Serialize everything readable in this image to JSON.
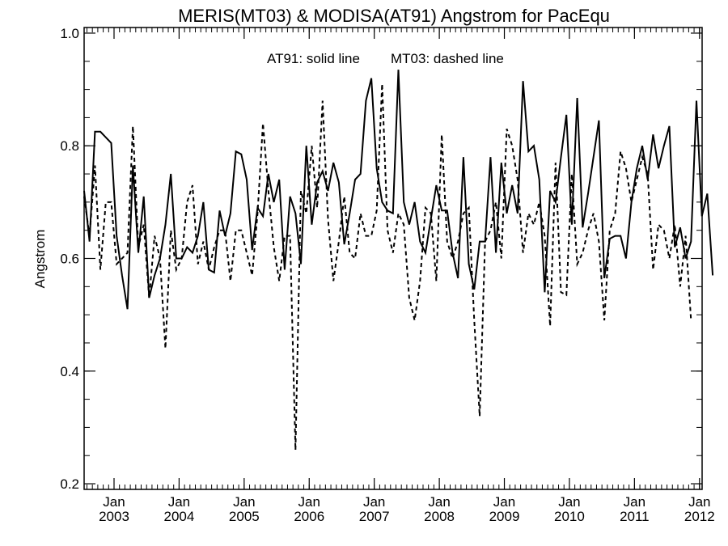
{
  "chart_data": {
    "type": "line",
    "title": "MERIS(MT03) & MODISA(AT91)  Angstrom for PacEqu",
    "ylabel": "Angstrom",
    "xlabel": "",
    "annotation_solid": "AT91: solid line",
    "annotation_dashed": "MT03: dashed line",
    "ylim": [
      0.19,
      1.01
    ],
    "xlim": [
      2002.54,
      2012.04
    ],
    "yticks": [
      0.2,
      0.4,
      0.6,
      0.8,
      1.0
    ],
    "ytick_labels": [
      "0.2",
      "0.4",
      "0.6",
      "0.8",
      "1.0"
    ],
    "xticks": [
      {
        "month": "Jan",
        "year": "2003",
        "x": 2003.0
      },
      {
        "month": "Jan",
        "year": "2004",
        "x": 2004.0
      },
      {
        "month": "Jan",
        "year": "2005",
        "x": 2005.0
      },
      {
        "month": "Jan",
        "year": "2006",
        "x": 2006.0
      },
      {
        "month": "Jan",
        "year": "2007",
        "x": 2007.0
      },
      {
        "month": "Jan",
        "year": "2008",
        "x": 2008.0
      },
      {
        "month": "Jan",
        "year": "2009",
        "x": 2009.0
      },
      {
        "month": "Jan",
        "year": "2010",
        "x": 2010.0
      },
      {
        "month": "Jan",
        "year": "2011",
        "x": 2011.0
      },
      {
        "month": "Jan",
        "year": "2012",
        "x": 2012.0
      }
    ],
    "x_start": 2002.54,
    "x_step": 0.0833,
    "series": [
      {
        "name": "AT91",
        "style": "solid",
        "color": "#000000",
        "values": [
          0.72,
          0.63,
          0.825,
          0.825,
          0.815,
          0.805,
          0.64,
          0.57,
          0.51,
          0.765,
          0.61,
          0.71,
          0.53,
          0.57,
          0.6,
          0.66,
          0.75,
          0.6,
          0.6,
          0.62,
          0.61,
          0.64,
          0.7,
          0.58,
          0.575,
          0.685,
          0.64,
          0.68,
          0.79,
          0.785,
          0.74,
          0.615,
          0.69,
          0.675,
          0.75,
          0.7,
          0.74,
          0.58,
          0.71,
          0.68,
          0.59,
          0.8,
          0.66,
          0.735,
          0.755,
          0.72,
          0.77,
          0.735,
          0.625,
          0.68,
          0.74,
          0.75,
          0.88,
          0.92,
          0.76,
          0.7,
          0.685,
          0.68,
          0.935,
          0.7,
          0.66,
          0.7,
          0.63,
          0.61,
          0.67,
          0.73,
          0.685,
          0.685,
          0.61,
          0.565,
          0.78,
          0.59,
          0.545,
          0.63,
          0.63,
          0.78,
          0.61,
          0.77,
          0.68,
          0.73,
          0.68,
          0.915,
          0.79,
          0.8,
          0.74,
          0.54,
          0.72,
          0.7,
          0.78,
          0.855,
          0.66,
          0.885,
          0.655,
          0.715,
          0.78,
          0.845,
          0.565,
          0.635,
          0.64,
          0.64,
          0.6,
          0.7,
          0.76,
          0.8,
          0.74,
          0.82,
          0.76,
          0.8,
          0.835,
          0.62,
          0.655,
          0.6,
          0.63,
          0.88,
          0.675,
          0.715,
          0.57
        ]
      },
      {
        "name": "MT03",
        "style": "dashed",
        "color": "#000000",
        "values": [
          0.71,
          0.64,
          0.765,
          0.58,
          0.7,
          0.7,
          0.59,
          0.6,
          0.61,
          0.835,
          0.62,
          0.66,
          0.53,
          0.64,
          0.6,
          0.44,
          0.65,
          0.58,
          0.6,
          0.7,
          0.73,
          0.59,
          0.63,
          0.58,
          0.62,
          0.65,
          0.65,
          0.56,
          0.65,
          0.65,
          0.61,
          0.57,
          0.68,
          0.84,
          0.72,
          0.62,
          0.56,
          0.64,
          0.64,
          0.26,
          0.72,
          0.68,
          0.8,
          0.69,
          0.88,
          0.67,
          0.56,
          0.63,
          0.71,
          0.61,
          0.6,
          0.68,
          0.64,
          0.64,
          0.685,
          0.91,
          0.65,
          0.61,
          0.68,
          0.66,
          0.53,
          0.49,
          0.56,
          0.69,
          0.68,
          0.56,
          0.82,
          0.63,
          0.6,
          0.63,
          0.68,
          0.69,
          0.49,
          0.32,
          0.63,
          0.65,
          0.7,
          0.6,
          0.83,
          0.8,
          0.74,
          0.61,
          0.68,
          0.66,
          0.7,
          0.64,
          0.48,
          0.77,
          0.54,
          0.535,
          0.75,
          0.59,
          0.61,
          0.65,
          0.68,
          0.63,
          0.49,
          0.65,
          0.68,
          0.79,
          0.76,
          0.7,
          0.74,
          0.78,
          0.75,
          0.58,
          0.66,
          0.65,
          0.6,
          0.66,
          0.55,
          0.64,
          0.49
        ]
      }
    ]
  }
}
